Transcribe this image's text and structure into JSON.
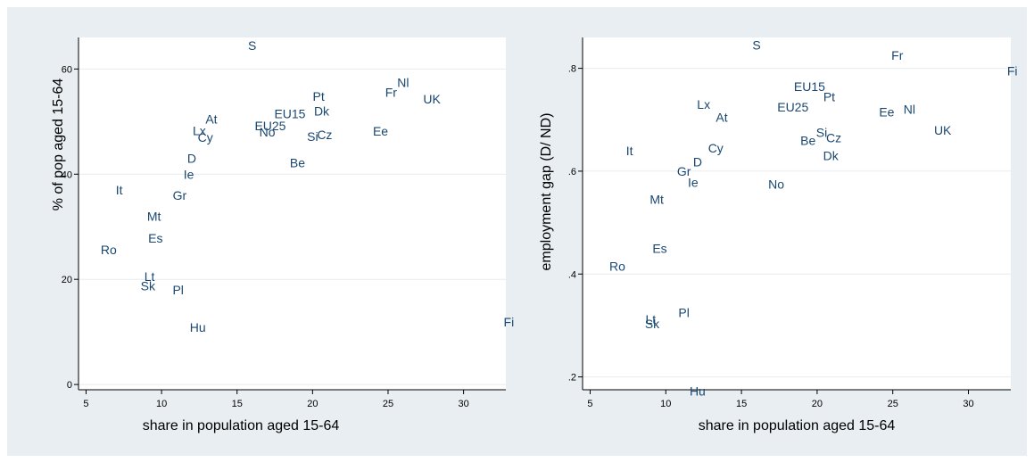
{
  "chart_data": [
    {
      "type": "scatter",
      "xlabel": "share in population aged 15-64",
      "ylabel": "% of pop aged 15-64",
      "xlim": [
        4.5,
        32.8
      ],
      "ylim": [
        -1,
        66
      ],
      "xticks": [
        5,
        10,
        15,
        20,
        25,
        30
      ],
      "yticks": [
        0,
        20,
        40,
        60
      ],
      "grid": true,
      "point_color": "#1a476f",
      "points": [
        {
          "label": "S",
          "x": 16.0,
          "y": 64.5
        },
        {
          "label": "Nl",
          "x": 26.0,
          "y": 57.4
        },
        {
          "label": "Fr",
          "x": 25.2,
          "y": 55.6
        },
        {
          "label": "Pt",
          "x": 20.4,
          "y": 54.8
        },
        {
          "label": "UK",
          "x": 27.9,
          "y": 54.3
        },
        {
          "label": "Dk",
          "x": 20.6,
          "y": 52.0
        },
        {
          "label": "EU15",
          "x": 18.5,
          "y": 51.5
        },
        {
          "label": "At",
          "x": 13.3,
          "y": 50.5
        },
        {
          "label": "EU25",
          "x": 17.2,
          "y": 49.2
        },
        {
          "label": "Lx",
          "x": 12.5,
          "y": 48.3
        },
        {
          "label": "No",
          "x": 17.0,
          "y": 48.0
        },
        {
          "label": "Ee",
          "x": 24.5,
          "y": 48.2
        },
        {
          "label": "Cz",
          "x": 20.8,
          "y": 47.5
        },
        {
          "label": "Si",
          "x": 20.0,
          "y": 47.2
        },
        {
          "label": "Cy",
          "x": 12.9,
          "y": 47.0
        },
        {
          "label": "D",
          "x": 12.0,
          "y": 43.0
        },
        {
          "label": "Be",
          "x": 19.0,
          "y": 42.2
        },
        {
          "label": "Ie",
          "x": 11.8,
          "y": 40.0
        },
        {
          "label": "It",
          "x": 7.2,
          "y": 37.0
        },
        {
          "label": "Gr",
          "x": 11.2,
          "y": 36.0
        },
        {
          "label": "Mt",
          "x": 9.5,
          "y": 32.0
        },
        {
          "label": "Es",
          "x": 9.6,
          "y": 27.8
        },
        {
          "label": "Ro",
          "x": 6.5,
          "y": 25.6
        },
        {
          "label": "Lt",
          "x": 9.2,
          "y": 20.5
        },
        {
          "label": "Sk",
          "x": 9.1,
          "y": 18.8
        },
        {
          "label": "Pl",
          "x": 11.1,
          "y": 18.0
        },
        {
          "label": "Hu",
          "x": 12.4,
          "y": 10.9
        },
        {
          "label": "Fi",
          "x": 33.0,
          "y": 11.9
        }
      ]
    },
    {
      "type": "scatter",
      "xlabel": "share in population aged 15-64",
      "ylabel": "employment gap (D/ ND)",
      "xlim": [
        4.5,
        32.8
      ],
      "ylim": [
        0.175,
        0.86
      ],
      "xticks": [
        5,
        10,
        15,
        20,
        25,
        30
      ],
      "yticks": [
        0.2,
        0.4,
        0.6,
        0.8
      ],
      "ytick_labels": [
        ".2",
        ".4",
        ".6",
        ".8"
      ],
      "grid": true,
      "point_color": "#1a476f",
      "points": [
        {
          "label": "S",
          "x": 16.0,
          "y": 0.845
        },
        {
          "label": "Fr",
          "x": 25.3,
          "y": 0.825
        },
        {
          "label": "Fi",
          "x": 32.9,
          "y": 0.795
        },
        {
          "label": "EU15",
          "x": 19.5,
          "y": 0.765
        },
        {
          "label": "Pt",
          "x": 20.8,
          "y": 0.745
        },
        {
          "label": "Lx",
          "x": 12.5,
          "y": 0.73
        },
        {
          "label": "EU25",
          "x": 18.4,
          "y": 0.725
        },
        {
          "label": "Nl",
          "x": 26.1,
          "y": 0.72
        },
        {
          "label": "Ee",
          "x": 24.6,
          "y": 0.715
        },
        {
          "label": "At",
          "x": 13.7,
          "y": 0.705
        },
        {
          "label": "UK",
          "x": 28.3,
          "y": 0.68
        },
        {
          "label": "Si",
          "x": 20.3,
          "y": 0.675
        },
        {
          "label": "Cz",
          "x": 21.1,
          "y": 0.665
        },
        {
          "label": "Be",
          "x": 19.4,
          "y": 0.66
        },
        {
          "label": "Cy",
          "x": 13.3,
          "y": 0.645
        },
        {
          "label": "It",
          "x": 7.6,
          "y": 0.64
        },
        {
          "label": "Dk",
          "x": 20.9,
          "y": 0.63
        },
        {
          "label": "D",
          "x": 12.1,
          "y": 0.618
        },
        {
          "label": "Gr",
          "x": 11.2,
          "y": 0.6
        },
        {
          "label": "Ie",
          "x": 11.8,
          "y": 0.578
        },
        {
          "label": "No",
          "x": 17.3,
          "y": 0.575
        },
        {
          "label": "Mt",
          "x": 9.4,
          "y": 0.545
        },
        {
          "label": "Es",
          "x": 9.6,
          "y": 0.45
        },
        {
          "label": "Ro",
          "x": 6.8,
          "y": 0.415
        },
        {
          "label": "Pl",
          "x": 11.2,
          "y": 0.325
        },
        {
          "label": "Lt",
          "x": 9.0,
          "y": 0.312
        },
        {
          "label": "Sk",
          "x": 9.1,
          "y": 0.303
        },
        {
          "label": "Hu",
          "x": 12.1,
          "y": 0.172
        }
      ]
    }
  ]
}
